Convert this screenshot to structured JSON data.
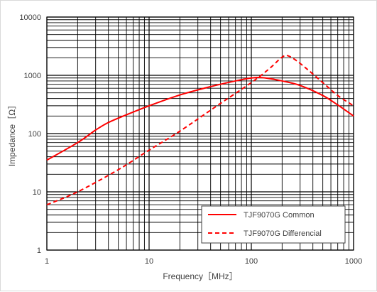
{
  "chart_data": {
    "type": "line",
    "title": "",
    "xlabel": "Frequency［MHz］",
    "ylabel": "Impedance［Ω］",
    "x_scale": "log",
    "y_scale": "log",
    "xlim": [
      1,
      1000
    ],
    "ylim": [
      1,
      10000
    ],
    "x_ticks": [
      "1",
      "10",
      "100",
      "1000"
    ],
    "y_ticks": [
      "1",
      "10",
      "100",
      "1000",
      "10000"
    ],
    "grid": true,
    "legend_position": "bottom-right",
    "series": [
      {
        "name": "TJF9070G Common",
        "style": "solid",
        "color": "#ff0000",
        "points": [
          [
            1,
            35
          ],
          [
            2,
            70
          ],
          [
            3,
            115
          ],
          [
            4,
            155
          ],
          [
            6,
            210
          ],
          [
            10,
            300
          ],
          [
            20,
            460
          ],
          [
            40,
            640
          ],
          [
            70,
            800
          ],
          [
            100,
            900
          ],
          [
            130,
            910
          ],
          [
            200,
            800
          ],
          [
            300,
            670
          ],
          [
            500,
            450
          ],
          [
            700,
            310
          ],
          [
            1000,
            200
          ]
        ]
      },
      {
        "name": "TJF9070G Differencial",
        "style": "dashed",
        "color": "#ff0000",
        "points": [
          [
            1,
            6
          ],
          [
            2,
            10
          ],
          [
            5,
            24
          ],
          [
            10,
            52
          ],
          [
            20,
            110
          ],
          [
            50,
            330
          ],
          [
            100,
            750
          ],
          [
            150,
            1300
          ],
          [
            200,
            2050
          ],
          [
            230,
            2150
          ],
          [
            300,
            1600
          ],
          [
            500,
            750
          ],
          [
            700,
            450
          ],
          [
            1000,
            300
          ]
        ]
      }
    ]
  }
}
